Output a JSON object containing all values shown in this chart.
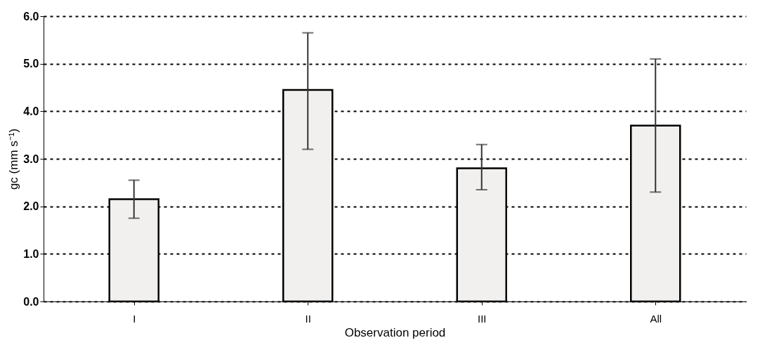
{
  "chart_data": {
    "type": "bar",
    "xlabel": "Observation period",
    "ylabel": "gc (mm s⁻¹)",
    "categories": [
      "I",
      "II",
      "III",
      "All"
    ],
    "values": [
      2.15,
      4.45,
      2.8,
      3.7
    ],
    "errors": [
      [
        1.75,
        2.55
      ],
      [
        3.2,
        5.65
      ],
      [
        2.35,
        3.3
      ],
      [
        2.3,
        5.1
      ]
    ],
    "color": "#f2f0ee",
    "ylim": [
      0,
      6
    ],
    "yticks": [
      {
        "value": 0,
        "label": "0.0"
      },
      {
        "value": 1,
        "label": "1.0"
      },
      {
        "value": 2,
        "label": "2.0"
      },
      {
        "value": 3,
        "label": "3.0"
      },
      {
        "value": 4,
        "label": "4.0"
      },
      {
        "value": 5,
        "label": "5.0"
      },
      {
        "value": 6,
        "label": "6.0"
      }
    ],
    "grid": "y"
  }
}
